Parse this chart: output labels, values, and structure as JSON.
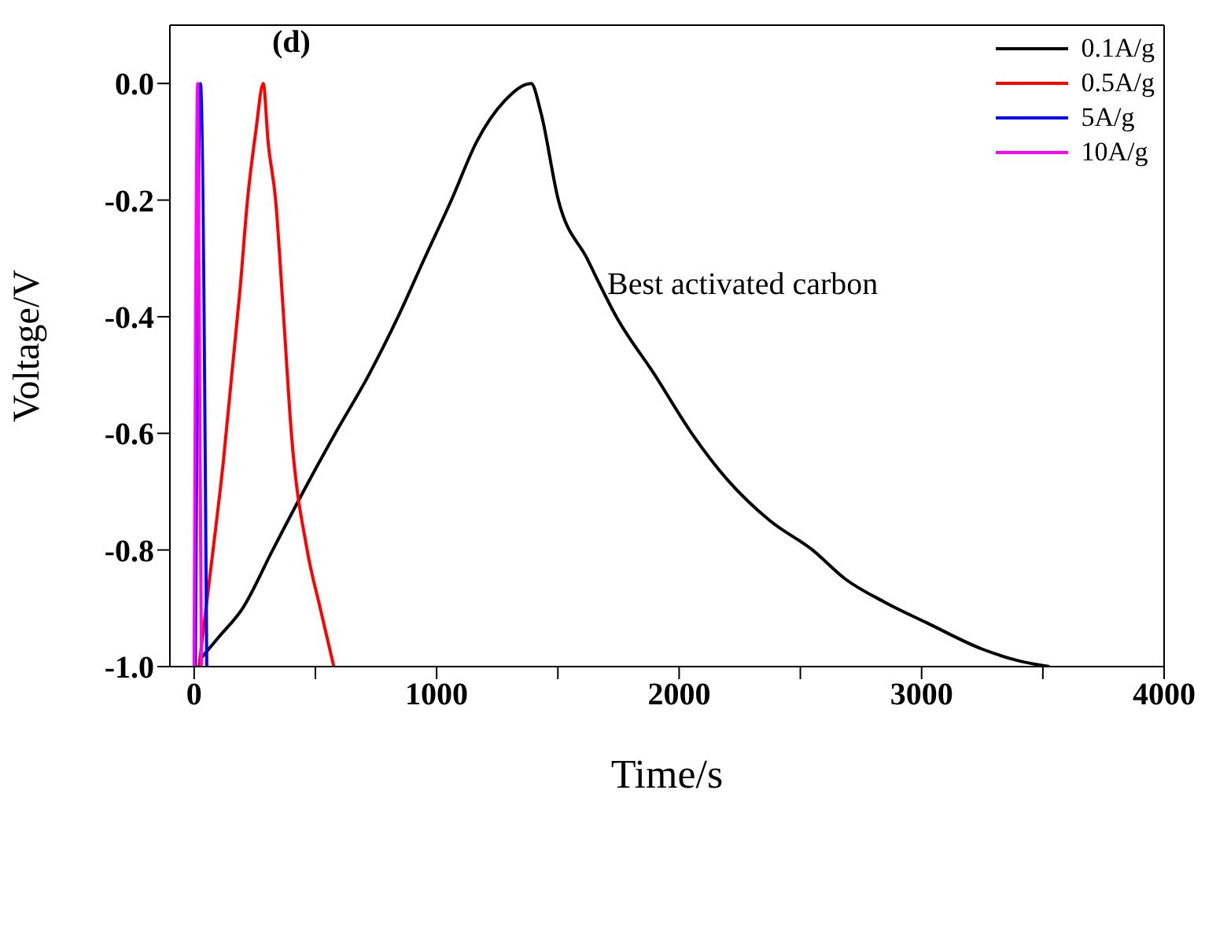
{
  "chart_data": {
    "type": "line",
    "xlabel": "Time/s",
    "ylabel": "Voltage/V",
    "xlim": [
      -100,
      4000
    ],
    "ylim": [
      -1,
      0.1
    ],
    "xticks": [
      0,
      {
        "value": 500,
        "label": null
      },
      1000,
      {
        "value": 1500,
        "label": null
      },
      2000,
      {
        "value": 2500,
        "label": null
      },
      3000,
      {
        "value": 3500,
        "label": null
      },
      4000
    ],
    "yticks": [
      {
        "value": -1,
        "label": "-1.0"
      },
      -0.8,
      -0.6,
      -0.4,
      -0.2,
      {
        "value": 0,
        "label": "0.0"
      }
    ],
    "legend": "top right",
    "line_style": "solid",
    "marker": "none",
    "annotations": [
      "(d)",
      "Best activated carbon"
    ],
    "series": [
      {
        "name": "0.1A/g",
        "color": "#000000",
        "x": [
          20,
          100,
          200,
          324,
          450,
          582,
          720,
          841,
          950,
          1061,
          1165,
          1280,
          1390,
          1430,
          1502,
          1620,
          1741,
          1900,
          2052,
          2200,
          2375,
          2550,
          2686,
          2850,
          3022,
          3250,
          3400,
          3527
        ],
        "values": [
          -0.99,
          -0.95,
          -0.9,
          -0.8,
          -0.7,
          -0.6,
          -0.5,
          -0.4,
          -0.3,
          -0.2,
          -0.1,
          -0.03,
          0,
          -0.05,
          -0.2,
          -0.3,
          -0.4,
          -0.5,
          -0.6,
          -0.68,
          -0.75,
          -0.8,
          -0.85,
          -0.89,
          -0.925,
          -0.97,
          -0.99,
          -1
        ]
      },
      {
        "name": "0.5A/g",
        "color": "#ff0000",
        "x": [
          20,
          78,
          120,
          155,
          190,
          220,
          255,
          285,
          305,
          336,
          369,
          401,
          466,
          520,
          576
        ],
        "values": [
          -1,
          -0.8,
          -0.65,
          -0.5,
          -0.35,
          -0.2,
          -0.08,
          0,
          -0.1,
          -0.2,
          -0.4,
          -0.6,
          -0.8,
          -0.9,
          -1
        ]
      },
      {
        "name": "5A/g",
        "color": "#0000ff",
        "x": [
          5,
          26,
          52
        ],
        "values": [
          -1,
          0,
          -1
        ]
      },
      {
        "name": "10A/g",
        "color": "#ff00ff",
        "x": [
          0,
          15,
          30
        ],
        "values": [
          -1,
          0,
          -1
        ]
      }
    ]
  }
}
